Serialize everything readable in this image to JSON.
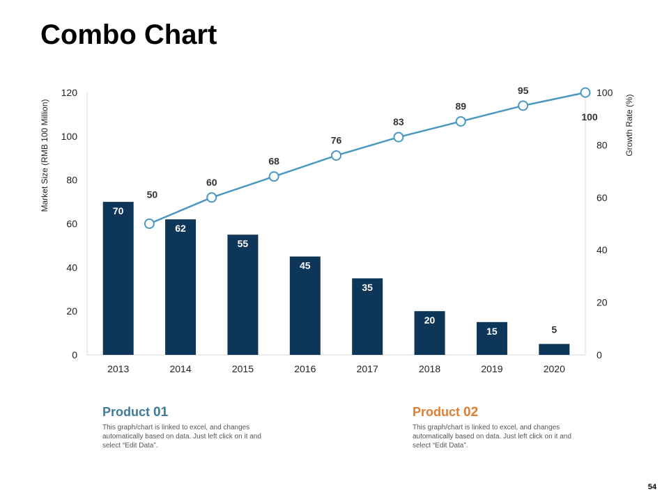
{
  "title": "Combo Chart",
  "page_number": "54",
  "products": [
    {
      "name": "Product",
      "number": "01",
      "description": "This graph/chart is linked to excel, and changes automatically based on data. Just left click on it and select “Edit Data”.",
      "color": "#3f7a99"
    },
    {
      "name": "Product",
      "number": "02",
      "description": "This graph/chart is linked to excel, and changes automatically based on data. Just left click on it and select “Edit Data”.",
      "color": "#dd7e33"
    }
  ],
  "chart_data": {
    "type": "bar",
    "categories": [
      "2013",
      "2014",
      "2015",
      "2016",
      "2017",
      "2018",
      "2019",
      "2020"
    ],
    "series": [
      {
        "type": "bar",
        "axis": "left",
        "values": [
          70,
          62,
          55,
          45,
          35,
          20,
          15,
          5
        ],
        "color": "#0e3659"
      },
      {
        "type": "line",
        "axis": "right",
        "values": [
          50,
          60,
          68,
          76,
          83,
          89,
          95,
          100
        ],
        "color": "#4a98bf"
      }
    ],
    "ylabel": "Market Size (RMB 100 Million)",
    "ylim": [
      0,
      120
    ],
    "yticks": [
      0,
      20,
      40,
      60,
      80,
      100,
      120
    ],
    "y2label": "Growth Rate (%)",
    "y2lim": [
      0,
      100
    ],
    "y2ticks": [
      0,
      20,
      40,
      60,
      80,
      100
    ],
    "grid": false,
    "legend": "none"
  }
}
